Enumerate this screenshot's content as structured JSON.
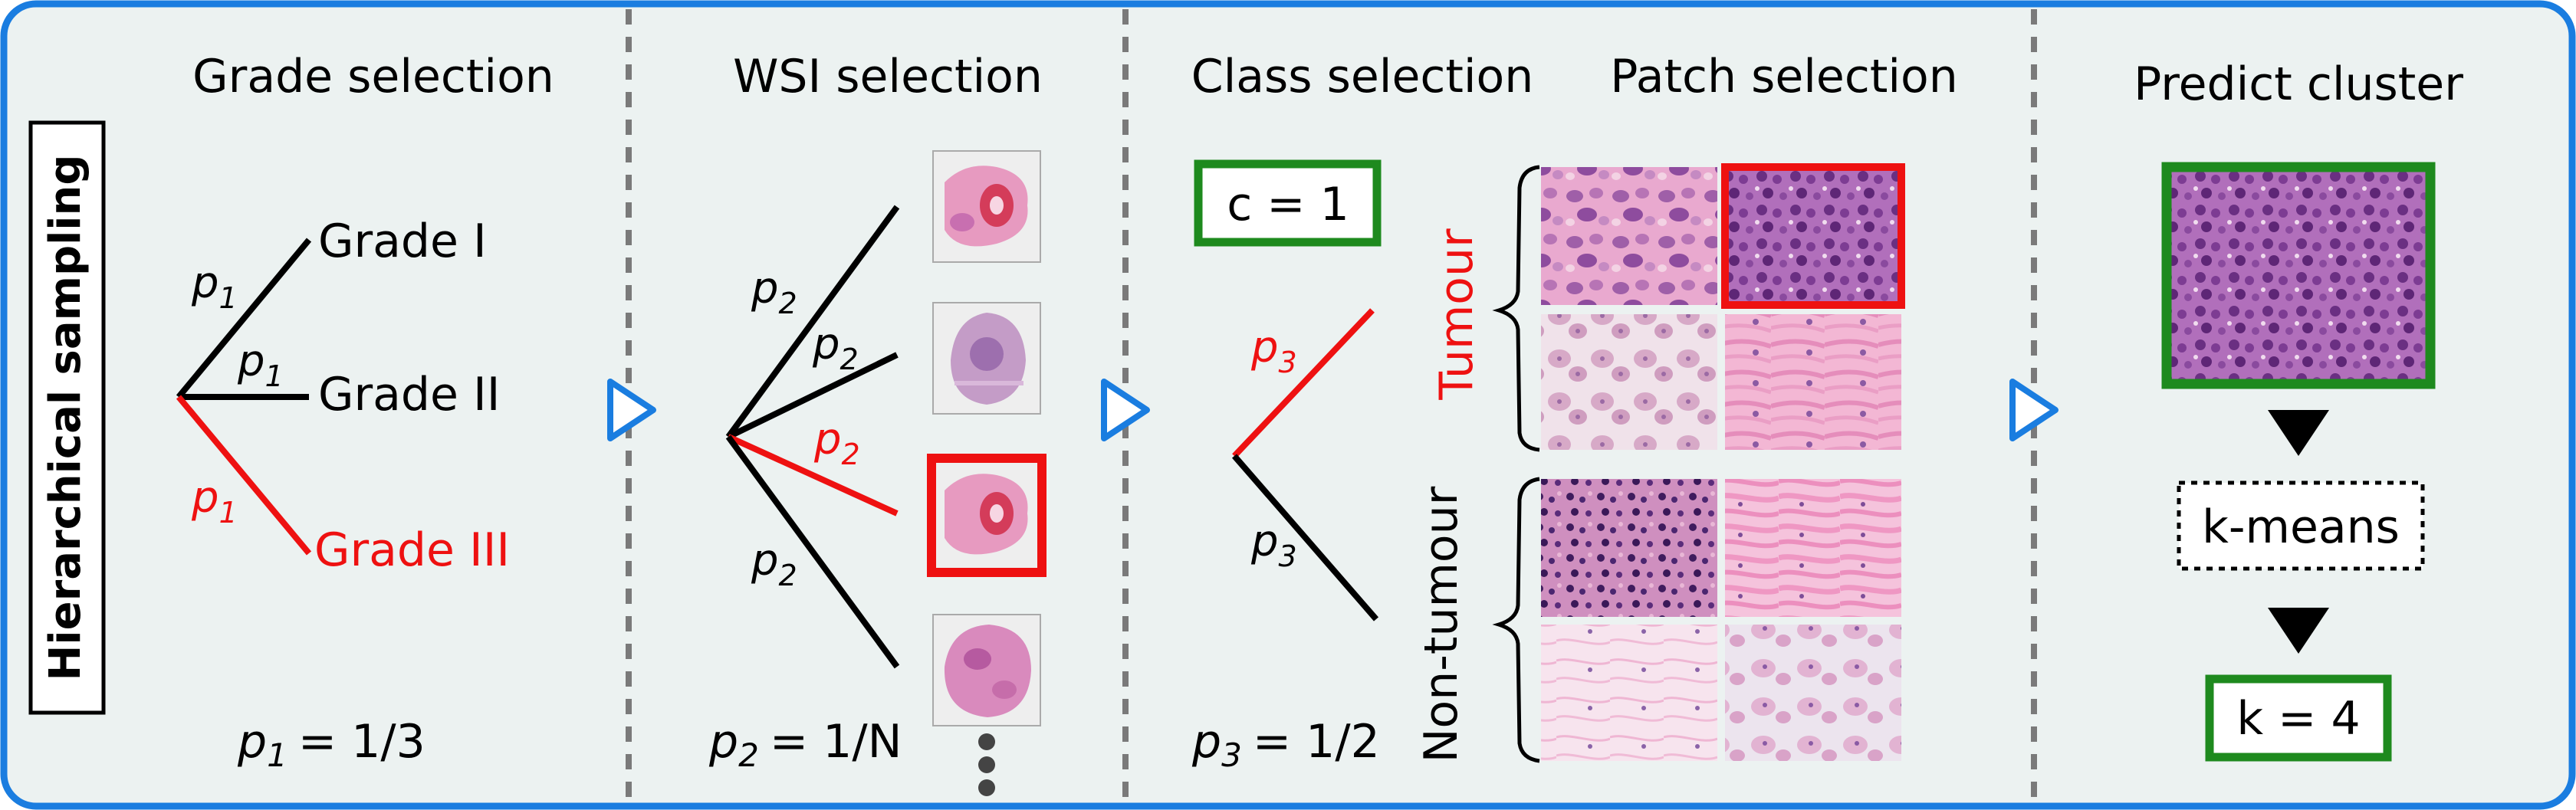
{
  "side_label": "Hierarchical sampling",
  "colors": {
    "border": "#1a7de0",
    "panel_bg": "#ecf2f1",
    "divider": "#7a7a7a",
    "red": "#ee1111",
    "green": "#1e8a1e",
    "black": "#000000",
    "arrow_outline": "#1a7de0"
  },
  "stages": {
    "grade": {
      "title": "Grade selection",
      "branches": [
        "Grade I",
        "Grade II",
        "Grade III"
      ],
      "prob_label": "p",
      "prob_sub": "1",
      "formula": "= 1/3"
    },
    "wsi": {
      "title": "WSI selection",
      "prob_label": "p",
      "prob_sub": "2",
      "formula": "= 1/N",
      "thumbnail_count": 4,
      "selected_index": 2,
      "more_indicator": "vertical-ellipsis"
    },
    "class": {
      "title": "Class selection",
      "selected_box": "c = 1",
      "prob_label": "p",
      "prob_sub": "3",
      "formula": "= 1/2"
    },
    "patch": {
      "title": "Patch selection",
      "groups": [
        "Tumour",
        "Non-tumour"
      ],
      "selected_patch": "top-right"
    },
    "cluster": {
      "title": "Predict cluster",
      "method": "k-means",
      "result": "k = 4"
    }
  }
}
